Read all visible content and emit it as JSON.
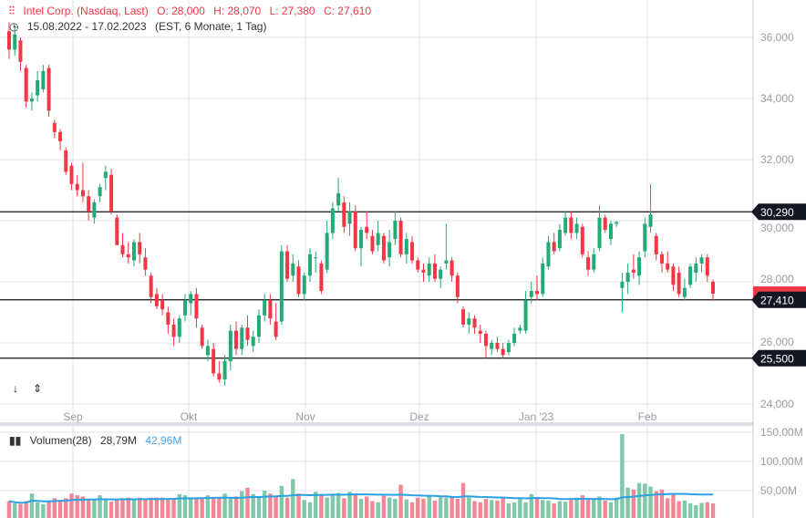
{
  "header": {
    "symbol": "Intel Corp. (Nasdaq, Last)",
    "open": "O: 28,000",
    "high": "H: 28,070",
    "low": "L: 27,380",
    "close": "C: 27,610",
    "range": "15.08.2022 - 17.02.2023",
    "settings": "(EST, 6 Monate, 1 Tag)"
  },
  "volume_header": {
    "label": "Volumen(28)",
    "value": "28,79M",
    "ma_value": "42,96M"
  },
  "price_axis": [
    "36,000",
    "34,000",
    "32,000",
    "30,000",
    "28,000",
    "26,000",
    "24,000"
  ],
  "price_axis_values": [
    36,
    34,
    32,
    30,
    28,
    26,
    24
  ],
  "volume_axis": [
    "150,00M",
    "100,00M",
    "50,00M"
  ],
  "volume_axis_values": [
    150,
    100,
    50
  ],
  "months": [
    "Sep",
    "Okt",
    "Nov",
    "Dez",
    "Jan '23",
    "Feb"
  ],
  "levels": [
    {
      "label": "30,290",
      "value": 30.29
    },
    {
      "label": "27,410",
      "value": 27.41
    },
    {
      "label": "25,500",
      "value": 25.5
    }
  ],
  "current_price": {
    "label": "27,610",
    "value": 27.61
  },
  "colors": {
    "up": "#22ab76",
    "down": "#f23645",
    "vol_up": "#7fc8a8",
    "vol_down": "#f28795",
    "ma": "#2aa1e0",
    "grid": "#e3e4e8"
  },
  "tools": {
    "scroll_down": "↓",
    "scale": "⇕"
  },
  "chart_data": {
    "type": "candlestick",
    "ohlc": [
      [
        36.2,
        36.5,
        35.3,
        35.6
      ],
      [
        35.6,
        36.4,
        35.4,
        36.1
      ],
      [
        35.9,
        36.0,
        34.9,
        35.2
      ],
      [
        35.0,
        35.1,
        33.7,
        33.9
      ],
      [
        33.9,
        34.2,
        33.6,
        34.0
      ],
      [
        34.1,
        34.9,
        33.9,
        34.6
      ],
      [
        34.3,
        35.1,
        34.2,
        34.9
      ],
      [
        35.0,
        35.1,
        33.4,
        33.6
      ],
      [
        33.2,
        33.3,
        32.7,
        32.9
      ],
      [
        32.9,
        33.0,
        32.3,
        32.6
      ],
      [
        32.3,
        32.4,
        31.5,
        31.6
      ],
      [
        31.8,
        31.9,
        31.0,
        31.2
      ],
      [
        31.2,
        31.5,
        30.8,
        31.0
      ],
      [
        31.0,
        31.9,
        30.6,
        30.8
      ],
      [
        30.8,
        31.0,
        30.0,
        30.3
      ],
      [
        30.1,
        30.7,
        29.9,
        30.6
      ],
      [
        30.8,
        31.2,
        30.6,
        31.1
      ],
      [
        31.4,
        31.8,
        31.0,
        31.6
      ],
      [
        31.5,
        31.7,
        30.2,
        30.3
      ],
      [
        30.1,
        30.2,
        29.3,
        29.2
      ],
      [
        29.2,
        29.6,
        28.8,
        28.9
      ],
      [
        28.9,
        29.3,
        28.6,
        28.8
      ],
      [
        28.7,
        29.4,
        28.5,
        29.3
      ],
      [
        29.3,
        29.6,
        28.6,
        28.9
      ],
      [
        28.8,
        29.1,
        28.2,
        28.4
      ],
      [
        28.2,
        28.3,
        27.3,
        27.5
      ],
      [
        27.6,
        27.8,
        27.1,
        27.2
      ],
      [
        27.4,
        27.6,
        26.9,
        27.1
      ],
      [
        27.0,
        27.2,
        26.3,
        26.6
      ],
      [
        26.6,
        26.8,
        25.9,
        26.2
      ],
      [
        26.2,
        26.9,
        26.0,
        26.8
      ],
      [
        26.9,
        27.6,
        26.7,
        27.4
      ],
      [
        27.3,
        27.7,
        26.9,
        27.6
      ],
      [
        27.6,
        27.8,
        26.5,
        26.8
      ],
      [
        26.5,
        26.6,
        25.8,
        25.9
      ],
      [
        25.6,
        26.1,
        25.4,
        25.9
      ],
      [
        25.8,
        26.0,
        24.9,
        25.0
      ],
      [
        25.0,
        25.4,
        24.7,
        24.8
      ],
      [
        24.8,
        25.6,
        24.6,
        25.4
      ],
      [
        25.4,
        26.6,
        25.1,
        26.4
      ],
      [
        26.4,
        26.7,
        25.6,
        25.8
      ],
      [
        25.8,
        26.6,
        25.6,
        26.5
      ],
      [
        26.5,
        26.9,
        25.9,
        26.1
      ],
      [
        25.9,
        26.4,
        25.7,
        26.2
      ],
      [
        26.2,
        27.1,
        26.0,
        26.9
      ],
      [
        26.9,
        27.6,
        26.7,
        27.4
      ],
      [
        27.4,
        27.6,
        26.6,
        26.8
      ],
      [
        26.7,
        27.3,
        26.1,
        26.2
      ],
      [
        26.7,
        29.2,
        26.6,
        29.0
      ],
      [
        29.0,
        29.2,
        28.0,
        28.1
      ],
      [
        28.2,
        28.9,
        28.0,
        28.6
      ],
      [
        28.5,
        28.7,
        27.5,
        27.6
      ],
      [
        27.6,
        28.3,
        27.4,
        28.2
      ],
      [
        28.2,
        29.1,
        28.0,
        28.9
      ],
      [
        28.8,
        29.0,
        28.3,
        28.8
      ],
      [
        28.6,
        28.7,
        27.6,
        27.7
      ],
      [
        28.4,
        30.0,
        28.3,
        29.6
      ],
      [
        29.6,
        30.6,
        29.4,
        30.4
      ],
      [
        30.5,
        31.4,
        30.3,
        30.9
      ],
      [
        30.6,
        30.8,
        29.6,
        29.8
      ],
      [
        29.9,
        30.6,
        29.5,
        30.3
      ],
      [
        30.3,
        30.5,
        29.0,
        29.1
      ],
      [
        29.1,
        29.8,
        28.5,
        29.7
      ],
      [
        29.8,
        30.3,
        29.4,
        29.6
      ],
      [
        29.5,
        29.7,
        28.9,
        29.0
      ],
      [
        29.2,
        30.0,
        29.0,
        29.6
      ],
      [
        29.5,
        29.6,
        28.6,
        28.7
      ],
      [
        28.8,
        29.7,
        28.5,
        29.3
      ],
      [
        29.4,
        30.3,
        29.2,
        30.0
      ],
      [
        30.0,
        30.1,
        28.8,
        28.9
      ],
      [
        28.9,
        29.6,
        28.6,
        29.4
      ],
      [
        29.3,
        29.5,
        28.6,
        28.7
      ],
      [
        28.7,
        28.8,
        28.3,
        28.4
      ],
      [
        28.4,
        28.6,
        28.0,
        28.3
      ],
      [
        28.2,
        28.8,
        28.0,
        28.6
      ],
      [
        28.6,
        28.9,
        28.0,
        28.1
      ],
      [
        28.1,
        28.5,
        27.8,
        28.4
      ],
      [
        28.6,
        29.9,
        28.4,
        28.7
      ],
      [
        28.7,
        28.8,
        28.0,
        28.2
      ],
      [
        28.2,
        28.3,
        27.3,
        27.5
      ],
      [
        27.1,
        27.2,
        26.5,
        26.6
      ],
      [
        26.6,
        27.0,
        26.3,
        26.8
      ],
      [
        26.8,
        26.9,
        26.3,
        26.5
      ],
      [
        26.4,
        26.6,
        26.0,
        26.3
      ],
      [
        26.3,
        26.4,
        25.5,
        25.9
      ],
      [
        25.8,
        26.1,
        25.6,
        26.0
      ],
      [
        26.0,
        26.2,
        25.7,
        25.8
      ],
      [
        25.8,
        26.0,
        25.5,
        25.6
      ],
      [
        25.7,
        26.1,
        25.6,
        26.0
      ],
      [
        26.0,
        26.5,
        25.9,
        26.3
      ],
      [
        26.4,
        26.6,
        26.3,
        26.5
      ],
      [
        26.4,
        27.7,
        26.3,
        27.4
      ],
      [
        27.5,
        28.0,
        27.3,
        27.7
      ],
      [
        27.7,
        28.2,
        27.4,
        27.6
      ],
      [
        27.6,
        28.8,
        27.5,
        28.6
      ],
      [
        28.5,
        29.5,
        28.4,
        29.3
      ],
      [
        29.3,
        29.6,
        28.9,
        29.0
      ],
      [
        29.1,
        29.9,
        29.0,
        29.7
      ],
      [
        29.6,
        30.3,
        29.5,
        30.1
      ],
      [
        30.1,
        30.3,
        29.4,
        29.6
      ],
      [
        29.6,
        30.1,
        29.4,
        29.9
      ],
      [
        29.8,
        29.9,
        28.8,
        28.9
      ],
      [
        28.8,
        29.0,
        28.2,
        28.4
      ],
      [
        28.4,
        29.1,
        28.3,
        28.9
      ],
      [
        29.1,
        30.5,
        29.0,
        30.1
      ],
      [
        30.1,
        30.2,
        29.6,
        29.7
      ],
      [
        29.4,
        30.0,
        29.2,
        29.9
      ],
      [
        29.9,
        30.0,
        29.8,
        29.95
      ],
      [
        27.8,
        28.3,
        27.0,
        28.0
      ],
      [
        28.0,
        28.6,
        27.6,
        28.3
      ],
      [
        28.4,
        28.9,
        28.1,
        28.3
      ],
      [
        28.2,
        29.0,
        27.9,
        28.8
      ],
      [
        29.0,
        30.1,
        28.8,
        29.9
      ],
      [
        29.8,
        31.2,
        29.6,
        30.2
      ],
      [
        29.5,
        29.6,
        28.7,
        28.9
      ],
      [
        28.9,
        29.0,
        28.3,
        28.6
      ],
      [
        28.6,
        29.0,
        28.3,
        28.4
      ],
      [
        28.5,
        28.6,
        27.7,
        27.9
      ],
      [
        28.3,
        28.5,
        27.5,
        27.6
      ],
      [
        27.5,
        28.1,
        27.4,
        27.8
      ],
      [
        27.9,
        28.6,
        27.8,
        28.5
      ],
      [
        28.3,
        28.8,
        28.0,
        28.6
      ],
      [
        28.6,
        28.9,
        28.3,
        28.8
      ],
      [
        28.8,
        28.9,
        28.0,
        28.2
      ],
      [
        28.0,
        28.07,
        27.38,
        27.61
      ]
    ],
    "volume": [
      32,
      28,
      27,
      32,
      45,
      30,
      27,
      32,
      37,
      34,
      37,
      45,
      42,
      40,
      35,
      35,
      42,
      34,
      31,
      36,
      37,
      38,
      34,
      38,
      36,
      38,
      38,
      38,
      34,
      35,
      44,
      42,
      37,
      36,
      37,
      42,
      38,
      38,
      45,
      38,
      40,
      49,
      55,
      44,
      40,
      50,
      45,
      40,
      58,
      38,
      70,
      45,
      34,
      30,
      48,
      44,
      38,
      42,
      46,
      37,
      48,
      44,
      36,
      40,
      32,
      30,
      41,
      38,
      36,
      60,
      35,
      30,
      38,
      36,
      40,
      33,
      40,
      38,
      40,
      36,
      63,
      38,
      32,
      30,
      36,
      34,
      33,
      37,
      28,
      30,
      36,
      30,
      44,
      36,
      34,
      33,
      28,
      32,
      31,
      34,
      38,
      42,
      34,
      37,
      40,
      33,
      30,
      38,
      147,
      55,
      52,
      63,
      62,
      57,
      49,
      52,
      37,
      44,
      32,
      33,
      28,
      25,
      29,
      30,
      28
    ],
    "ma_period": 28,
    "ylim": [
      24,
      36
    ],
    "volume_ylim": [
      0,
      150
    ]
  }
}
